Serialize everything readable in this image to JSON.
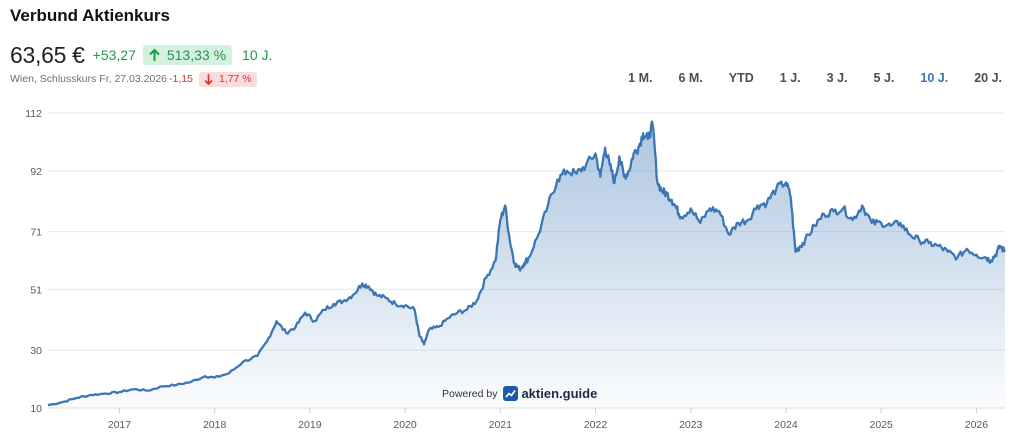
{
  "header": {
    "title": "Verbund Aktienkurs",
    "price": "63,65 €",
    "abs_change": "+53,27",
    "pct_change": "513,33 %",
    "period": "10 J.",
    "exchange_info": "Wien, Schlusskurs Fr, 27.03.2026",
    "day_change": "-1,15",
    "day_pct": "1,77 %"
  },
  "ranges": [
    {
      "label": "1 M.",
      "active": false
    },
    {
      "label": "6 M.",
      "active": false
    },
    {
      "label": "YTD",
      "active": false
    },
    {
      "label": "1 J.",
      "active": false
    },
    {
      "label": "3 J.",
      "active": false
    },
    {
      "label": "5 J.",
      "active": false
    },
    {
      "label": "10 J.",
      "active": true
    },
    {
      "label": "20 J.",
      "active": false
    }
  ],
  "watermark": {
    "powered": "Powered by",
    "brand": "aktien.guide",
    "logo_icon": "trend-chart-icon"
  },
  "colors": {
    "line": "#3b76b5",
    "positive": "#1f9a4b",
    "negative": "#d63434",
    "active_range": "#3a73b7"
  },
  "chart_data": {
    "type": "area",
    "title": "",
    "xlabel": "",
    "ylabel": "",
    "grid": true,
    "ylim": [
      10,
      112
    ],
    "xlim": [
      2016.25,
      2026.3
    ],
    "y_ticks": [
      "10",
      "30",
      "51",
      "71",
      "92",
      "112"
    ],
    "y_tick_values": [
      10,
      30,
      51,
      71,
      92,
      112
    ],
    "x_ticks": [
      "2017",
      "2018",
      "2019",
      "2020",
      "2021",
      "2022",
      "2023",
      "2024",
      "2025",
      "2026"
    ],
    "x_tick_values": [
      2017,
      2018,
      2019,
      2020,
      2021,
      2022,
      2023,
      2024,
      2025,
      2026
    ],
    "series": [
      {
        "x": [
          2016.25,
          2016.4,
          2016.55,
          2016.7,
          2016.85,
          2017.0,
          2017.15,
          2017.3,
          2017.45,
          2017.6,
          2017.75,
          2017.9,
          2018.0,
          2018.15,
          2018.3,
          2018.45,
          2018.55,
          2018.65,
          2018.75,
          2018.85,
          2018.95,
          2019.05,
          2019.15,
          2019.25,
          2019.35,
          2019.45,
          2019.55,
          2019.62,
          2019.7,
          2019.8,
          2019.9,
          2020.0,
          2020.1,
          2020.15,
          2020.2,
          2020.25,
          2020.35,
          2020.45,
          2020.55,
          2020.65,
          2020.75,
          2020.85,
          2020.95,
          2021.0,
          2021.05,
          2021.1,
          2021.15,
          2021.2,
          2021.25,
          2021.3,
          2021.4,
          2021.5,
          2021.6,
          2021.7,
          2021.8,
          2021.9,
          2022.0,
          2022.05,
          2022.1,
          2022.15,
          2022.2,
          2022.25,
          2022.3,
          2022.35,
          2022.4,
          2022.45,
          2022.5,
          2022.55,
          2022.6,
          2022.65,
          2022.7,
          2022.75,
          2022.8,
          2022.85,
          2022.9,
          2023.0,
          2023.1,
          2023.2,
          2023.3,
          2023.4,
          2023.5,
          2023.6,
          2023.7,
          2023.8,
          2023.9,
          2024.0,
          2024.05,
          2024.1,
          2024.15,
          2024.2,
          2024.3,
          2024.4,
          2024.5,
          2024.6,
          2024.7,
          2024.8,
          2024.9,
          2025.0,
          2025.1,
          2025.2,
          2025.3,
          2025.4,
          2025.5,
          2025.6,
          2025.7,
          2025.8,
          2025.9,
          2026.0,
          2026.1,
          2026.15,
          2026.2,
          2026.25,
          2026.3
        ],
        "values": [
          11,
          12,
          13.5,
          14.5,
          15,
          15.5,
          16.5,
          16,
          17.5,
          18,
          19,
          21,
          20.5,
          22,
          26,
          28,
          33,
          40,
          36,
          38,
          43,
          40,
          44,
          46,
          47,
          49,
          53,
          52,
          49,
          48,
          46,
          45.5,
          44,
          35,
          32,
          37,
          38,
          41,
          43,
          44,
          47,
          55,
          61,
          75,
          80,
          68,
          60,
          58,
          60,
          62,
          70,
          80,
          89,
          92,
          91,
          94,
          98,
          90,
          100,
          94,
          88,
          97,
          90,
          92,
          98,
          100,
          105,
          103,
          108,
          88,
          85,
          84,
          82,
          79,
          76,
          79,
          74,
          79,
          78,
          70,
          74,
          75,
          80,
          81,
          86,
          88,
          83,
          64,
          66,
          68,
          73,
          77,
          78,
          79,
          75,
          80,
          74,
          74,
          73,
          74,
          70,
          68,
          67,
          66,
          64,
          62,
          65,
          63,
          62,
          61,
          63,
          66,
          64
        ]
      }
    ]
  }
}
